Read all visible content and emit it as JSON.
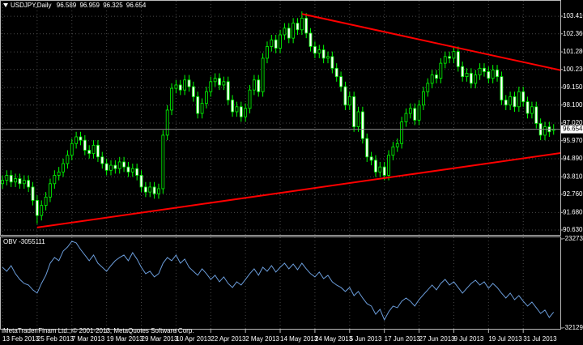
{
  "chart_data": [
    {
      "type": "candlestick",
      "title": "USDJPY,Daily",
      "categories": [
        "13 Feb 2013",
        null,
        null,
        null,
        null,
        null,
        null,
        null,
        "25 Feb 2013",
        null,
        null,
        null,
        null,
        null,
        null,
        null,
        "7 Mar 2013",
        null,
        null,
        null,
        null,
        null,
        null,
        null,
        "19 Mar 2013",
        null,
        null,
        null,
        null,
        null,
        null,
        null,
        "29 Mar 2013",
        null,
        null,
        null,
        null,
        null,
        null,
        null,
        "10 Apr 2013",
        null,
        null,
        null,
        null,
        null,
        null,
        null,
        "22 Apr 2013",
        null,
        null,
        null,
        null,
        null,
        null,
        null,
        "2 May 2013",
        null,
        null,
        null,
        null,
        null,
        null,
        null,
        "14 May 2013",
        null,
        null,
        null,
        null,
        null,
        null,
        null,
        "24 May 2013",
        null,
        null,
        null,
        null,
        null,
        null,
        null,
        "5 Jun 2013",
        null,
        null,
        null,
        null,
        null,
        null,
        null,
        "17 Jun 2013",
        null,
        null,
        null,
        null,
        null,
        null,
        null,
        "27 Jun 2013",
        null,
        null,
        null,
        null,
        null,
        null,
        null,
        "9 Jul 2013",
        null,
        null,
        null,
        null,
        null,
        null,
        null,
        "19 Jul 2013",
        null,
        null,
        null,
        null,
        null,
        null,
        null,
        "31 Jul 2013",
        null,
        null,
        null,
        null,
        null,
        null,
        null
      ],
      "candles": [
        [
          93.4,
          93.9,
          93.1,
          93.6
        ],
        [
          93.6,
          94.2,
          93.3,
          93.9
        ],
        [
          93.9,
          94.2,
          93.2,
          93.5
        ],
        [
          93.5,
          94.0,
          93.2,
          93.7
        ],
        [
          93.7,
          94.0,
          93.1,
          93.4
        ],
        [
          93.4,
          93.9,
          93.1,
          93.6
        ],
        [
          93.6,
          93.9,
          92.9,
          93.2
        ],
        [
          93.2,
          93.5,
          92.1,
          92.4
        ],
        [
          92.4,
          92.7,
          91.0,
          91.5
        ],
        [
          91.5,
          92.4,
          91.2,
          92.1
        ],
        [
          92.1,
          92.9,
          91.8,
          92.6
        ],
        [
          92.6,
          93.7,
          92.3,
          93.4
        ],
        [
          93.4,
          94.2,
          93.1,
          93.9
        ],
        [
          93.9,
          94.4,
          93.6,
          94.1
        ],
        [
          94.1,
          94.9,
          93.8,
          94.6
        ],
        [
          94.6,
          95.4,
          94.3,
          95.1
        ],
        [
          95.1,
          96.1,
          94.8,
          95.8
        ],
        [
          95.8,
          96.5,
          95.5,
          96.2
        ],
        [
          96.2,
          96.5,
          95.7,
          96.0
        ],
        [
          96.0,
          96.3,
          95.1,
          95.4
        ],
        [
          95.4,
          95.7,
          94.9,
          95.2
        ],
        [
          95.2,
          96.0,
          94.9,
          95.7
        ],
        [
          95.7,
          96.0,
          94.7,
          95.0
        ],
        [
          95.0,
          95.3,
          94.3,
          94.6
        ],
        [
          94.6,
          94.9,
          93.9,
          94.2
        ],
        [
          94.2,
          94.8,
          93.9,
          94.5
        ],
        [
          94.5,
          94.8,
          94.0,
          94.3
        ],
        [
          94.3,
          95.0,
          94.0,
          94.7
        ],
        [
          94.7,
          95.0,
          94.1,
          94.4
        ],
        [
          94.4,
          94.7,
          93.8,
          94.1
        ],
        [
          94.1,
          94.6,
          93.8,
          94.3
        ],
        [
          94.3,
          94.6,
          93.6,
          93.9
        ],
        [
          93.9,
          94.2,
          92.9,
          93.2
        ],
        [
          93.2,
          93.5,
          92.6,
          92.9
        ],
        [
          92.9,
          93.5,
          92.6,
          93.2
        ],
        [
          93.2,
          93.5,
          92.5,
          92.8
        ],
        [
          92.8,
          93.4,
          92.5,
          93.1
        ],
        [
          93.1,
          96.6,
          92.8,
          96.3
        ],
        [
          96.3,
          98.1,
          96.0,
          97.8
        ],
        [
          97.8,
          99.4,
          97.5,
          99.1
        ],
        [
          99.1,
          99.6,
          98.8,
          99.3
        ],
        [
          99.3,
          99.6,
          98.7,
          99.0
        ],
        [
          99.0,
          99.9,
          98.7,
          99.6
        ],
        [
          99.6,
          99.9,
          98.9,
          99.2
        ],
        [
          99.2,
          99.5,
          98.3,
          98.6
        ],
        [
          98.6,
          98.9,
          97.3,
          97.6
        ],
        [
          97.6,
          98.5,
          97.3,
          98.2
        ],
        [
          98.2,
          99.2,
          97.9,
          98.9
        ],
        [
          98.9,
          99.8,
          98.6,
          99.5
        ],
        [
          99.5,
          100.0,
          99.2,
          99.7
        ],
        [
          99.7,
          100.0,
          99.0,
          99.3
        ],
        [
          99.3,
          99.8,
          99.0,
          99.5
        ],
        [
          99.5,
          99.8,
          98.1,
          98.4
        ],
        [
          98.4,
          98.7,
          97.4,
          97.7
        ],
        [
          97.7,
          98.3,
          97.4,
          98.0
        ],
        [
          98.0,
          98.3,
          97.1,
          97.4
        ],
        [
          97.4,
          98.2,
          97.1,
          97.9
        ],
        [
          97.9,
          99.3,
          97.6,
          99.0
        ],
        [
          99.0,
          99.9,
          98.7,
          99.6
        ],
        [
          99.6,
          99.9,
          98.6,
          98.9
        ],
        [
          98.9,
          101.2,
          98.6,
          100.9
        ],
        [
          100.9,
          101.9,
          100.6,
          101.6
        ],
        [
          101.6,
          102.3,
          101.3,
          102.0
        ],
        [
          102.0,
          102.3,
          101.2,
          101.5
        ],
        [
          101.5,
          102.6,
          101.2,
          102.3
        ],
        [
          102.3,
          103.0,
          102.0,
          102.7
        ],
        [
          102.7,
          103.0,
          101.8,
          102.1
        ],
        [
          102.1,
          103.3,
          101.8,
          103.0
        ],
        [
          103.0,
          103.3,
          102.3,
          102.6
        ],
        [
          102.6,
          103.7,
          102.3,
          103.3
        ],
        [
          103.3,
          103.6,
          102.1,
          102.4
        ],
        [
          102.4,
          102.7,
          101.3,
          101.6
        ],
        [
          101.6,
          101.9,
          100.9,
          101.2
        ],
        [
          101.2,
          101.7,
          100.9,
          101.4
        ],
        [
          101.4,
          101.7,
          100.6,
          100.9
        ],
        [
          100.9,
          101.3,
          100.6,
          101.0
        ],
        [
          101.0,
          101.3,
          100.0,
          100.3
        ],
        [
          100.3,
          100.6,
          99.5,
          99.8
        ],
        [
          99.8,
          100.1,
          98.9,
          99.2
        ],
        [
          99.2,
          99.5,
          97.8,
          98.1
        ],
        [
          98.1,
          98.9,
          97.8,
          98.6
        ],
        [
          98.6,
          98.9,
          96.5,
          96.8
        ],
        [
          96.8,
          98.0,
          96.5,
          97.7
        ],
        [
          97.7,
          98.0,
          95.8,
          96.1
        ],
        [
          96.1,
          96.4,
          94.7,
          95.0
        ],
        [
          95.0,
          95.3,
          94.5,
          94.8
        ],
        [
          94.8,
          95.1,
          93.8,
          94.1
        ],
        [
          94.1,
          94.7,
          93.8,
          94.4
        ],
        [
          94.4,
          94.7,
          93.6,
          93.9
        ],
        [
          93.9,
          95.4,
          93.6,
          95.1
        ],
        [
          95.1,
          95.9,
          94.8,
          95.6
        ],
        [
          95.6,
          96.1,
          95.3,
          95.8
        ],
        [
          95.8,
          97.4,
          95.5,
          97.1
        ],
        [
          97.1,
          97.9,
          96.8,
          97.6
        ],
        [
          97.6,
          98.2,
          97.3,
          97.9
        ],
        [
          97.9,
          98.2,
          96.9,
          97.2
        ],
        [
          97.2,
          98.4,
          96.9,
          98.1
        ],
        [
          98.1,
          99.2,
          97.8,
          98.9
        ],
        [
          98.9,
          99.7,
          98.6,
          99.4
        ],
        [
          99.4,
          100.2,
          99.1,
          99.9
        ],
        [
          99.9,
          100.2,
          99.4,
          99.7
        ],
        [
          99.7,
          100.9,
          99.4,
          100.6
        ],
        [
          100.6,
          101.3,
          100.3,
          101.0
        ],
        [
          101.0,
          101.3,
          100.6,
          100.9
        ],
        [
          100.9,
          101.6,
          100.6,
          101.3
        ],
        [
          101.3,
          101.6,
          100.1,
          100.4
        ],
        [
          100.4,
          100.7,
          99.5,
          99.8
        ],
        [
          99.8,
          100.3,
          99.5,
          100.0
        ],
        [
          100.0,
          100.3,
          99.1,
          99.4
        ],
        [
          99.4,
          100.2,
          99.1,
          99.9
        ],
        [
          99.9,
          100.6,
          99.6,
          100.3
        ],
        [
          100.3,
          100.6,
          99.8,
          100.1
        ],
        [
          100.1,
          100.4,
          99.4,
          99.7
        ],
        [
          99.7,
          100.5,
          99.4,
          100.2
        ],
        [
          100.2,
          100.5,
          99.5,
          99.8
        ],
        [
          99.8,
          100.1,
          98.1,
          98.4
        ],
        [
          98.4,
          98.7,
          97.8,
          98.1
        ],
        [
          98.1,
          98.9,
          97.8,
          98.6
        ],
        [
          98.6,
          98.9,
          97.7,
          98.0
        ],
        [
          98.0,
          99.2,
          97.7,
          98.9
        ],
        [
          98.9,
          99.2,
          98.0,
          98.3
        ],
        [
          98.3,
          98.6,
          97.3,
          97.6
        ],
        [
          97.6,
          98.3,
          97.3,
          98.0
        ],
        [
          98.0,
          98.3,
          96.7,
          97.0
        ],
        [
          97.0,
          97.3,
          96.0,
          96.3
        ],
        [
          96.3,
          97.1,
          96.0,
          96.8
        ],
        [
          96.8,
          97.1,
          96.2,
          96.5
        ],
        [
          96.589,
          96.959,
          96.325,
          96.654
        ]
      ],
      "ylim": [
        90.34,
        104.14
      ],
      "yticks": [
        {
          "value": 103.41,
          "label": "103.410"
        },
        {
          "value": 102.36,
          "label": "102.360"
        },
        {
          "value": 101.28,
          "label": "101.280"
        },
        {
          "value": 100.23,
          "label": "100.230"
        },
        {
          "value": 99.15,
          "label": "99.150"
        },
        {
          "value": 98.1,
          "label": "98.100"
        },
        {
          "value": 97.02,
          "label": "97.020"
        },
        {
          "value": 95.97,
          "label": "95.970"
        },
        {
          "value": 94.89,
          "label": "94.890"
        },
        {
          "value": 93.81,
          "label": "93.810"
        },
        {
          "value": 92.76,
          "label": "92.760"
        },
        {
          "value": 91.68,
          "label": "91.680"
        },
        {
          "value": 90.63,
          "label": "90.630"
        }
      ],
      "grid": true,
      "up_color": "#000000",
      "down_color": "#ffffff",
      "line_color": "#00ff00",
      "trendlines": [
        {
          "color": "#ff0000",
          "x": [
            69,
            134.5
          ],
          "y": [
            103.55,
            99.85
          ]
        },
        {
          "color": "#ff0000",
          "x": [
            8,
            134.5
          ],
          "y": [
            90.78,
            95.45
          ]
        }
      ]
    },
    {
      "type": "line",
      "title": "OBV -3055111",
      "color": "#6a9bd8",
      "values": [
        -2609000,
        -2649000,
        -2593000,
        -2673000,
        -2730000,
        -2770000,
        -2786000,
        -2834000,
        -2866000,
        -2770000,
        -2689000,
        -2569000,
        -2512000,
        -2544000,
        -2448000,
        -2408000,
        -2351000,
        -2367000,
        -2432000,
        -2488000,
        -2544000,
        -2488000,
        -2569000,
        -2609000,
        -2649000,
        -2593000,
        -2544000,
        -2512000,
        -2488000,
        -2544000,
        -2464000,
        -2528000,
        -2609000,
        -2673000,
        -2649000,
        -2705000,
        -2673000,
        -2569000,
        -2512000,
        -2544000,
        -2488000,
        -2569000,
        -2528000,
        -2609000,
        -2649000,
        -2689000,
        -2625000,
        -2673000,
        -2730000,
        -2689000,
        -2754000,
        -2705000,
        -2770000,
        -2810000,
        -2754000,
        -2786000,
        -2730000,
        -2673000,
        -2625000,
        -2689000,
        -2609000,
        -2649000,
        -2593000,
        -2657000,
        -2609000,
        -2569000,
        -2625000,
        -2577000,
        -2633000,
        -2569000,
        -2625000,
        -2673000,
        -2705000,
        -2657000,
        -2722000,
        -2689000,
        -2754000,
        -2786000,
        -2810000,
        -2850000,
        -2810000,
        -2891000,
        -2850000,
        -2915000,
        -2971000,
        -2995000,
        -3076000,
        -3027000,
        -3132000,
        -3052000,
        -2995000,
        -3011000,
        -2947000,
        -2915000,
        -2947000,
        -2995000,
        -2931000,
        -2882000,
        -2834000,
        -2786000,
        -2834000,
        -2770000,
        -2730000,
        -2786000,
        -2754000,
        -2810000,
        -2866000,
        -2818000,
        -2770000,
        -2738000,
        -2786000,
        -2754000,
        -2818000,
        -2770000,
        -2810000,
        -2866000,
        -2915000,
        -2866000,
        -2931000,
        -2891000,
        -2947000,
        -2995000,
        -2955000,
        -3011000,
        -3068000,
        -3035000,
        -3108000,
        -3055111
      ],
      "ylim": [
        -3212942,
        -2327349
      ],
      "yticks": [
        -2327349,
        -3212942
      ]
    }
  ],
  "footer": "MetaTrader Finam Ltd., © 2001-2013, MetaQuotes Software Corp."
}
